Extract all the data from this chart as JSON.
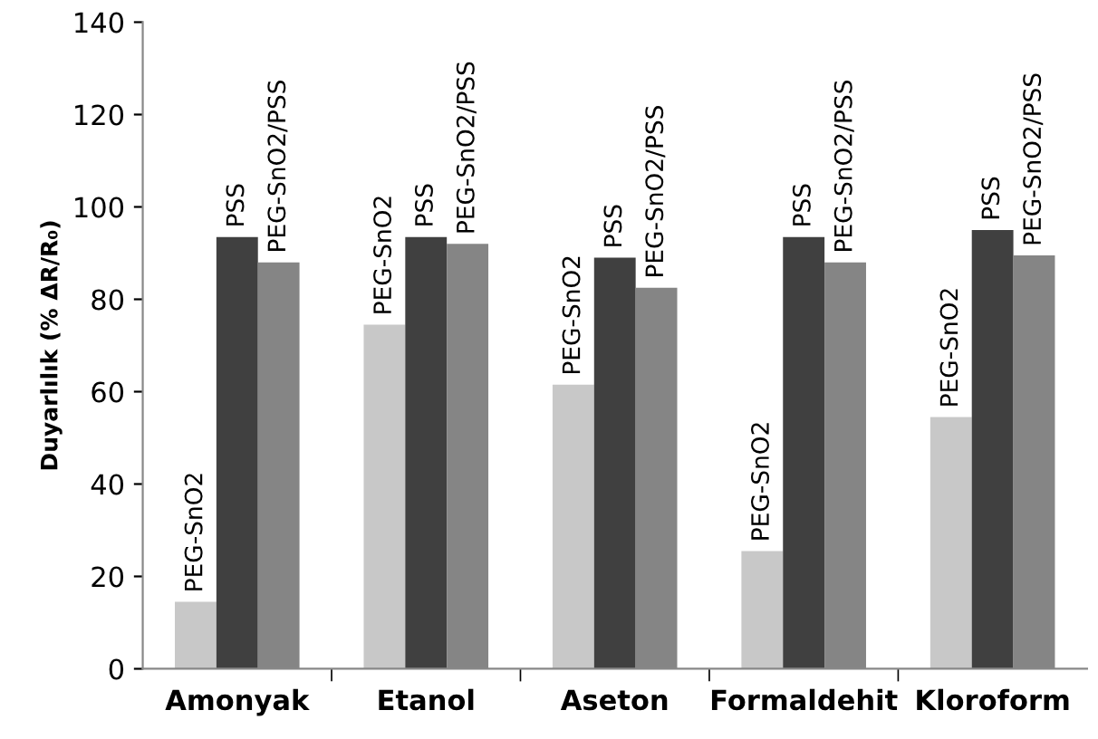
{
  "chart_data": {
    "type": "bar",
    "ylabel": "Duyarlılık (% ΔR/R₀)",
    "categories": [
      "Amonyak",
      "Etanol",
      "Aseton",
      "Formaldehit",
      "Kloroform"
    ],
    "series": [
      {
        "name": "PEG-SnO2",
        "color": "#c8c8c8",
        "values": [
          14.5,
          74.5,
          61.5,
          25.5,
          54.5
        ]
      },
      {
        "name": "PSS",
        "color": "#404040",
        "values": [
          93.5,
          93.5,
          89,
          93.5,
          95
        ]
      },
      {
        "name": "PEG-SnO2/PSS",
        "color": "#858585",
        "values": [
          88,
          92,
          82.5,
          88,
          89.5
        ]
      }
    ],
    "ylim": [
      0,
      140
    ],
    "yticks": [
      0,
      20,
      40,
      60,
      80,
      100,
      120,
      140
    ],
    "grid": false,
    "legend": false
  }
}
